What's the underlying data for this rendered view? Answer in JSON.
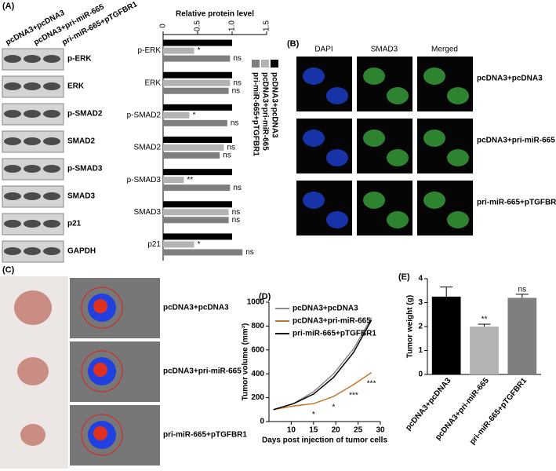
{
  "panels": {
    "a": "(A)",
    "b": "(B)",
    "c": "(C)",
    "d": "(D)",
    "e": "(E)"
  },
  "blot": {
    "lanes": [
      "pcDNA3+pcDNA3",
      "pcDNA3+pri-miR-665",
      "pri-miR-665+pTGFBR1"
    ],
    "proteins": [
      "p-ERK",
      "ERK",
      "p-SMAD2",
      "SMAD2",
      "p-SMAD3",
      "SMAD3",
      "p21",
      "GAPDH"
    ]
  },
  "microscopy": {
    "columns": [
      "DAPI",
      "SMAD3",
      "Merged"
    ],
    "rows": [
      "pcDNA3+pcDNA3",
      "pcDNA3+pri-miR-665",
      "pri-miR-665+pTGFBR1"
    ]
  },
  "tumor_images": {
    "rows": [
      "pcDNA3+pcDNA3",
      "pcDNA3+pri-miR-665",
      "pri-miR-665+pTGFBR1"
    ]
  },
  "chart_data": [
    {
      "type": "bar",
      "orientation": "horizontal",
      "title": "Relative protein level",
      "categories": [
        "p-ERK",
        "ERK",
        "p-SMAD2",
        "SMAD2",
        "p-SMAD3",
        "SMAD3",
        "p21"
      ],
      "series": [
        {
          "name": "pcDNA3+pcDNA3",
          "color": "#000000",
          "values": [
            1,
            1,
            1,
            1,
            1,
            1,
            1
          ]
        },
        {
          "name": "pcDNA3+pri-miR-665",
          "color": "#b3b3b3",
          "values": [
            0.45,
            0.97,
            0.38,
            0.88,
            0.3,
            0.95,
            0.45
          ],
          "annotations": [
            "*",
            "ns",
            "*",
            "ns",
            "**",
            "ns",
            "*"
          ]
        },
        {
          "name": "pri-miR-665+pTGFBR1",
          "color": "#7f7f7f",
          "values": [
            0.97,
            0.95,
            0.93,
            0.82,
            0.97,
            0.95,
            1.15
          ],
          "annotations": [
            "ns",
            "ns",
            "ns",
            "ns",
            "ns",
            "ns",
            "ns"
          ]
        }
      ],
      "xlim": [
        0,
        1.5
      ],
      "xticks": [
        0,
        0.5,
        {
          "value": 1,
          "label": "1.0"
        },
        1.5
      ],
      "legend": "right"
    },
    {
      "type": "line",
      "xlabel": "Days post injection  of tumor cells",
      "ylabel": "Tumor volume (mm³)",
      "x": [
        6,
        10.5,
        15,
        19.5,
        24,
        28
      ],
      "series": [
        {
          "name": "pcDNA3+pcDNA3",
          "color": "#8c8c8c",
          "values": [
            100,
            150,
            250,
            400,
            610,
            870
          ]
        },
        {
          "name": "pcDNA3+pri-miR-665",
          "color": "#c0782c",
          "values": [
            100,
            130,
            150,
            210,
            310,
            410
          ],
          "annotations": [
            null,
            null,
            "*",
            "*",
            "***",
            "***"
          ]
        },
        {
          "name": "pri-miR-665+pTGFBR1",
          "color": "#000000",
          "values": [
            100,
            150,
            230,
            370,
            580,
            850
          ]
        }
      ],
      "xlim": [
        5,
        30
      ],
      "xticks": [
        10,
        15,
        20,
        25,
        30
      ],
      "ylim": [
        0,
        1000
      ],
      "yticks": [
        0,
        200,
        400,
        600,
        800,
        1000
      ],
      "legend": "upper left"
    },
    {
      "type": "bar",
      "orientation": "vertical",
      "ylabel": "Tumor weight (g)",
      "categories": [
        "pcDNA3+pcDNA3",
        "pcDNA3+pri-miR-665",
        "pri-miR-665+pTGFBR1"
      ],
      "values": [
        3.25,
        2.0,
        3.2
      ],
      "errors": [
        0.4,
        0.1,
        0.15
      ],
      "colors": [
        "#000000",
        "#b3b3b3",
        "#7f7f7f"
      ],
      "annotations": [
        null,
        "**",
        "ns"
      ],
      "ylim": [
        0,
        4
      ],
      "yticks": [
        0,
        1,
        2,
        3,
        4
      ]
    }
  ]
}
